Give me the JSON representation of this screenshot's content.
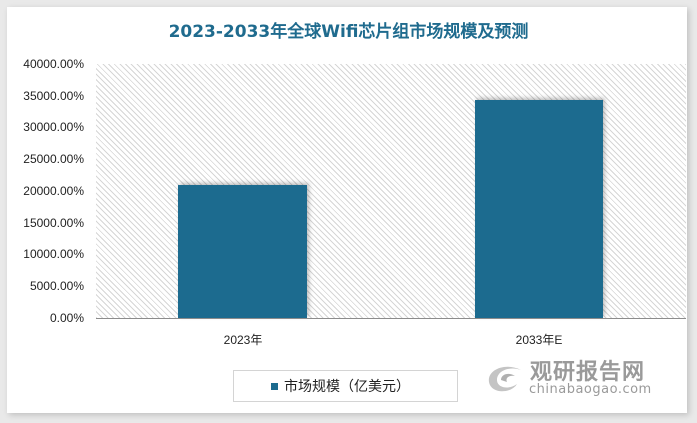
{
  "chart_data": {
    "type": "bar",
    "title": "2023-2033年全球Wifi芯片组市场规模及预测",
    "categories": [
      "2023年",
      "2033年E"
    ],
    "series": [
      {
        "name": "市场规模（亿美元）",
        "values": [
          21000,
          34300
        ],
        "color": "#1c6b8f"
      }
    ],
    "xlabel": "",
    "ylabel": "",
    "ylim": [
      0,
      40000
    ],
    "yticks": [
      "0.00%",
      "5000.00%",
      "10000.00%",
      "15000.00%",
      "20000.00%",
      "25000.00%",
      "30000.00%",
      "35000.00%",
      "40000.00%"
    ],
    "grid": false,
    "legend_position": "bottom"
  },
  "watermark": {
    "cn": "观研报告网",
    "en": "chinabaogao.com"
  }
}
